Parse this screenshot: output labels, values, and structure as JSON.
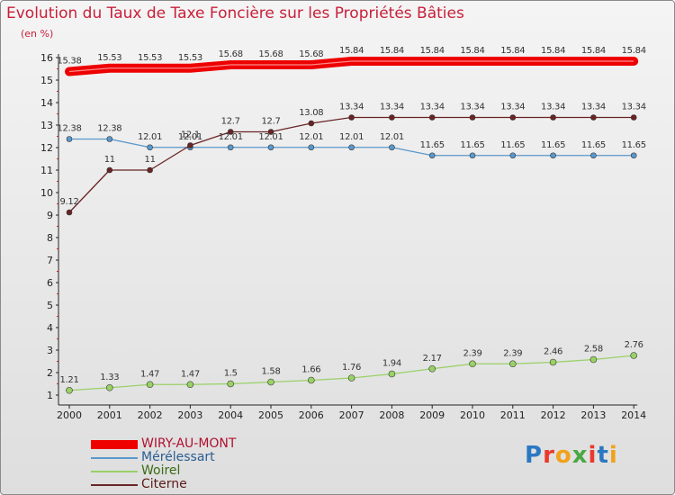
{
  "title": "Evolution du Taux de Taxe Foncière sur les Propriétés Bâties",
  "unit_label": "(en %)",
  "logo": {
    "text": "Proxiti",
    "letter_colors": [
      "#2b78c2",
      "#e9392c",
      "#f0a21b",
      "#4aa843",
      "#e9392c",
      "#2b78c2",
      "#f0a21b"
    ]
  },
  "chart_data": {
    "type": "line",
    "title": "Evolution du Taux de Taxe Foncière sur les Propriétés Bâties",
    "ylabel": "(en %)",
    "xlabel": "",
    "ylim": [
      1,
      16
    ],
    "yticks": [
      1,
      2,
      3,
      4,
      5,
      6,
      7,
      8,
      9,
      10,
      11,
      12,
      13,
      14,
      15,
      16
    ],
    "grid": false,
    "legend_position": "bottom-left",
    "x": [
      "2000",
      "2001",
      "2002",
      "2003",
      "2004",
      "2005",
      "2006",
      "2007",
      "2008",
      "2009",
      "2010",
      "2011",
      "2012",
      "2013",
      "2014"
    ],
    "series": [
      {
        "name": "WIRY-AU-MONT",
        "color": "#ee0000",
        "values": [
          15.38,
          15.53,
          15.53,
          15.53,
          15.68,
          15.68,
          15.68,
          15.84,
          15.84,
          15.84,
          15.84,
          15.84,
          15.84,
          15.84,
          15.84
        ],
        "labels": [
          "15.38",
          "15.53",
          "15.53",
          "15.53",
          "15.68",
          "15.68",
          "15.68",
          "15.84",
          "15.84",
          "15.84",
          "15.84",
          "15.84",
          "15.84",
          "15.84",
          "15.84"
        ]
      },
      {
        "name": "Mérélessart",
        "color": "#5a98cc",
        "values": [
          12.38,
          12.38,
          12.01,
          12.01,
          12.01,
          12.01,
          12.01,
          12.01,
          12.01,
          11.65,
          11.65,
          11.65,
          11.65,
          11.65,
          11.65
        ],
        "labels": [
          "12.38",
          "12.38",
          "12.01",
          "12.01",
          "12.01",
          "12.01",
          "12.01",
          "12.01",
          "12.01",
          "11.65",
          "11.65",
          "11.65",
          "11.65",
          "11.65",
          "11.65"
        ]
      },
      {
        "name": "Woirel",
        "color": "#99d166",
        "values": [
          1.21,
          1.33,
          1.47,
          1.47,
          1.5,
          1.58,
          1.66,
          1.76,
          1.94,
          2.17,
          2.39,
          2.39,
          2.46,
          2.58,
          2.76
        ],
        "labels": [
          "1.21",
          "1.33",
          "1.47",
          "1.47",
          "1.5",
          "1.58",
          "1.66",
          "1.76",
          "1.94",
          "2.17",
          "2.39",
          "2.39",
          "2.46",
          "2.58",
          "2.76"
        ]
      },
      {
        "name": "Citerne",
        "color": "#6a2424",
        "values": [
          9.12,
          11,
          11,
          12.1,
          12.7,
          12.7,
          13.08,
          13.34,
          13.34,
          13.34,
          13.34,
          13.34,
          13.34,
          13.34,
          13.34
        ],
        "labels": [
          "9.12",
          "11",
          "11",
          "12.1",
          "12.7",
          "12.7",
          "13.08",
          "13.34",
          "13.34",
          "13.34",
          "13.34",
          "13.34",
          "13.34",
          "13.34",
          "13.34"
        ]
      }
    ]
  }
}
